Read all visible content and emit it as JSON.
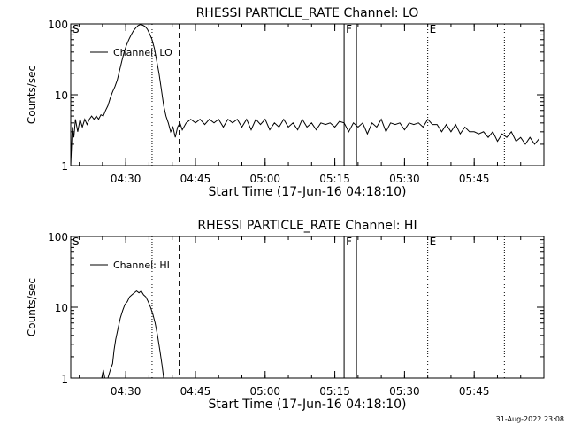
{
  "footer_timestamp": "31-Aug-2022 23:08",
  "chart_data": [
    {
      "type": "line",
      "title": "RHESSI PARTICLE_RATE Channel: LO",
      "xlabel": "Start Time (17-Jun-16 04:18:10)",
      "ylabel": "Counts/sec",
      "yscale": "log",
      "ylim": [
        1,
        100
      ],
      "xlim": [
        "04:18:10",
        "06:00:00"
      ],
      "y_tick_labels": [
        "1",
        "10",
        "100"
      ],
      "x_tick_labels": [
        "04:30",
        "04:45",
        "05:00",
        "05:15",
        "05:30",
        "05:45"
      ],
      "legend": "Channel: LO",
      "markers": [
        {
          "label": "S",
          "time": "04:18:10",
          "style": "dotted"
        },
        {
          "label": "",
          "time": "04:35:40",
          "style": "dotted"
        },
        {
          "label": "",
          "time": "04:41:30",
          "style": "dashed"
        },
        {
          "label": "F",
          "time": "05:17:00",
          "style": "solid"
        },
        {
          "label": "",
          "time": "05:19:40",
          "style": "solid"
        },
        {
          "label": "E",
          "time": "05:35:00",
          "style": "dotted"
        },
        {
          "label": "",
          "time": "05:51:30",
          "style": "dotted"
        }
      ],
      "series": [
        {
          "name": "Channel: LO",
          "points": [
            [
              "04:18:10",
              1.0
            ],
            [
              "04:18:30",
              3.5
            ],
            [
              "04:18:50",
              2.5
            ],
            [
              "04:19:10",
              4.5
            ],
            [
              "04:19:40",
              3.0
            ],
            [
              "04:20:10",
              4.5
            ],
            [
              "04:20:40",
              3.5
            ],
            [
              "04:21:10",
              4.5
            ],
            [
              "04:21:40",
              3.8
            ],
            [
              "04:22:10",
              4.5
            ],
            [
              "04:22:40",
              5.0
            ],
            [
              "04:23:10",
              4.5
            ],
            [
              "04:23:40",
              5.0
            ],
            [
              "04:24:10",
              4.5
            ],
            [
              "04:24:40",
              5.2
            ],
            [
              "04:25:10",
              5.0
            ],
            [
              "04:25:40",
              6.0
            ],
            [
              "04:26:10",
              7.0
            ],
            [
              "04:26:40",
              9.0
            ],
            [
              "04:27:10",
              11.0
            ],
            [
              "04:27:40",
              13.0
            ],
            [
              "04:28:10",
              16.0
            ],
            [
              "04:28:40",
              22.0
            ],
            [
              "04:29:10",
              30.0
            ],
            [
              "04:29:40",
              40.0
            ],
            [
              "04:30:10",
              50.0
            ],
            [
              "04:30:40",
              60.0
            ],
            [
              "04:31:10",
              70.0
            ],
            [
              "04:31:40",
              80.0
            ],
            [
              "04:32:10",
              88.0
            ],
            [
              "04:32:40",
              95.0
            ],
            [
              "04:33:10",
              98.0
            ],
            [
              "04:33:40",
              96.0
            ],
            [
              "04:34:10",
              92.0
            ],
            [
              "04:34:40",
              84.0
            ],
            [
              "04:35:10",
              72.0
            ],
            [
              "04:35:40",
              60.0
            ],
            [
              "04:36:10",
              45.0
            ],
            [
              "04:36:40",
              30.0
            ],
            [
              "04:37:10",
              20.0
            ],
            [
              "04:37:40",
              12.0
            ],
            [
              "04:38:10",
              7.0
            ],
            [
              "04:38:40",
              5.0
            ],
            [
              "04:39:10",
              4.0
            ],
            [
              "04:39:40",
              3.0
            ],
            [
              "04:40:10",
              3.5
            ],
            [
              "04:40:40",
              2.5
            ],
            [
              "04:41:10",
              3.5
            ],
            [
              "04:41:40",
              4.0
            ],
            [
              "04:42:10",
              3.2
            ],
            [
              "04:43:00",
              4.0
            ],
            [
              "04:44:00",
              4.5
            ],
            [
              "04:45:00",
              4.0
            ],
            [
              "04:46:00",
              4.5
            ],
            [
              "04:47:00",
              3.8
            ],
            [
              "04:48:00",
              4.5
            ],
            [
              "04:49:00",
              4.0
            ],
            [
              "04:50:00",
              4.5
            ],
            [
              "04:51:00",
              3.5
            ],
            [
              "04:52:00",
              4.5
            ],
            [
              "04:53:00",
              4.0
            ],
            [
              "04:54:00",
              4.5
            ],
            [
              "04:55:00",
              3.5
            ],
            [
              "04:56:00",
              4.5
            ],
            [
              "04:57:00",
              3.2
            ],
            [
              "04:58:00",
              4.5
            ],
            [
              "04:59:00",
              3.8
            ],
            [
              "05:00:00",
              4.5
            ],
            [
              "05:01:00",
              3.2
            ],
            [
              "05:02:00",
              4.0
            ],
            [
              "05:03:00",
              3.5
            ],
            [
              "05:04:00",
              4.5
            ],
            [
              "05:05:00",
              3.5
            ],
            [
              "05:06:00",
              4.0
            ],
            [
              "05:07:00",
              3.2
            ],
            [
              "05:08:00",
              4.5
            ],
            [
              "05:09:00",
              3.5
            ],
            [
              "05:10:00",
              4.0
            ],
            [
              "05:11:00",
              3.2
            ],
            [
              "05:12:00",
              4.0
            ],
            [
              "05:13:00",
              3.8
            ],
            [
              "05:14:00",
              4.0
            ],
            [
              "05:15:00",
              3.5
            ],
            [
              "05:16:00",
              4.2
            ],
            [
              "05:17:00",
              4.0
            ],
            [
              "05:18:00",
              3.0
            ],
            [
              "05:19:00",
              4.0
            ],
            [
              "05:20:00",
              3.5
            ],
            [
              "05:21:00",
              4.0
            ],
            [
              "05:22:00",
              2.8
            ],
            [
              "05:23:00",
              4.0
            ],
            [
              "05:24:00",
              3.5
            ],
            [
              "05:25:00",
              4.5
            ],
            [
              "05:26:00",
              3.0
            ],
            [
              "05:27:00",
              4.0
            ],
            [
              "05:28:00",
              3.8
            ],
            [
              "05:29:00",
              4.0
            ],
            [
              "05:30:00",
              3.2
            ],
            [
              "05:31:00",
              4.0
            ],
            [
              "05:32:00",
              3.8
            ],
            [
              "05:33:00",
              4.0
            ],
            [
              "05:34:00",
              3.5
            ],
            [
              "05:35:00",
              4.5
            ],
            [
              "05:36:00",
              3.8
            ],
            [
              "05:37:00",
              3.8
            ],
            [
              "05:38:00",
              3.0
            ],
            [
              "05:39:00",
              3.8
            ],
            [
              "05:40:00",
              3.0
            ],
            [
              "05:41:00",
              3.8
            ],
            [
              "05:42:00",
              2.8
            ],
            [
              "05:43:00",
              3.5
            ],
            [
              "05:44:00",
              3.0
            ],
            [
              "05:45:00",
              3.0
            ],
            [
              "05:46:00",
              2.8
            ],
            [
              "05:47:00",
              3.0
            ],
            [
              "05:48:00",
              2.5
            ],
            [
              "05:49:00",
              3.0
            ],
            [
              "05:50:00",
              2.2
            ],
            [
              "05:51:00",
              2.8
            ],
            [
              "05:52:00",
              2.5
            ],
            [
              "05:53:00",
              3.0
            ],
            [
              "05:54:00",
              2.2
            ],
            [
              "05:55:00",
              2.5
            ],
            [
              "05:56:00",
              2.0
            ],
            [
              "05:57:00",
              2.5
            ],
            [
              "05:58:00",
              2.0
            ],
            [
              "05:59:00",
              2.4
            ]
          ]
        }
      ]
    },
    {
      "type": "line",
      "title": "RHESSI PARTICLE_RATE Channel: HI",
      "xlabel": "Start Time (17-Jun-16 04:18:10)",
      "ylabel": "Counts/sec",
      "yscale": "log",
      "ylim": [
        1,
        100
      ],
      "xlim": [
        "04:18:10",
        "06:00:00"
      ],
      "y_tick_labels": [
        "1",
        "10",
        "100"
      ],
      "x_tick_labels": [
        "04:30",
        "04:45",
        "05:00",
        "05:15",
        "05:30",
        "05:45"
      ],
      "legend": "Channel: HI",
      "markers": [
        {
          "label": "S",
          "time": "04:18:10",
          "style": "dotted"
        },
        {
          "label": "",
          "time": "04:35:40",
          "style": "dotted"
        },
        {
          "label": "",
          "time": "04:41:30",
          "style": "dashed"
        },
        {
          "label": "F",
          "time": "05:17:00",
          "style": "solid"
        },
        {
          "label": "",
          "time": "05:19:40",
          "style": "solid"
        },
        {
          "label": "E",
          "time": "05:35:00",
          "style": "dotted"
        },
        {
          "label": "",
          "time": "05:51:30",
          "style": "dotted"
        }
      ],
      "series": [
        {
          "name": "Channel: HI",
          "points": [
            [
              "04:24:50",
              1.0
            ],
            [
              "04:25:10",
              1.3
            ],
            [
              "04:25:30",
              1.0
            ],
            [
              "04:26:10",
              1.0
            ],
            [
              "04:26:40",
              1.3
            ],
            [
              "04:27:10",
              1.6
            ],
            [
              "04:27:30",
              2.5
            ],
            [
              "04:27:50",
              3.5
            ],
            [
              "04:28:20",
              5.0
            ],
            [
              "04:28:50",
              7.0
            ],
            [
              "04:29:20",
              9.0
            ],
            [
              "04:29:50",
              11.0
            ],
            [
              "04:30:20",
              12.0
            ],
            [
              "04:30:50",
              14.0
            ],
            [
              "04:31:20",
              15.0
            ],
            [
              "04:31:50",
              16.0
            ],
            [
              "04:32:20",
              17.0
            ],
            [
              "04:32:50",
              16.0
            ],
            [
              "04:33:20",
              17.0
            ],
            [
              "04:33:50",
              15.0
            ],
            [
              "04:34:20",
              14.0
            ],
            [
              "04:34:50",
              12.0
            ],
            [
              "04:35:20",
              10.0
            ],
            [
              "04:35:50",
              8.0
            ],
            [
              "04:36:20",
              6.0
            ],
            [
              "04:36:50",
              4.0
            ],
            [
              "04:37:20",
              2.5
            ],
            [
              "04:37:50",
              1.5
            ],
            [
              "04:38:10",
              1.0
            ]
          ]
        }
      ]
    }
  ]
}
